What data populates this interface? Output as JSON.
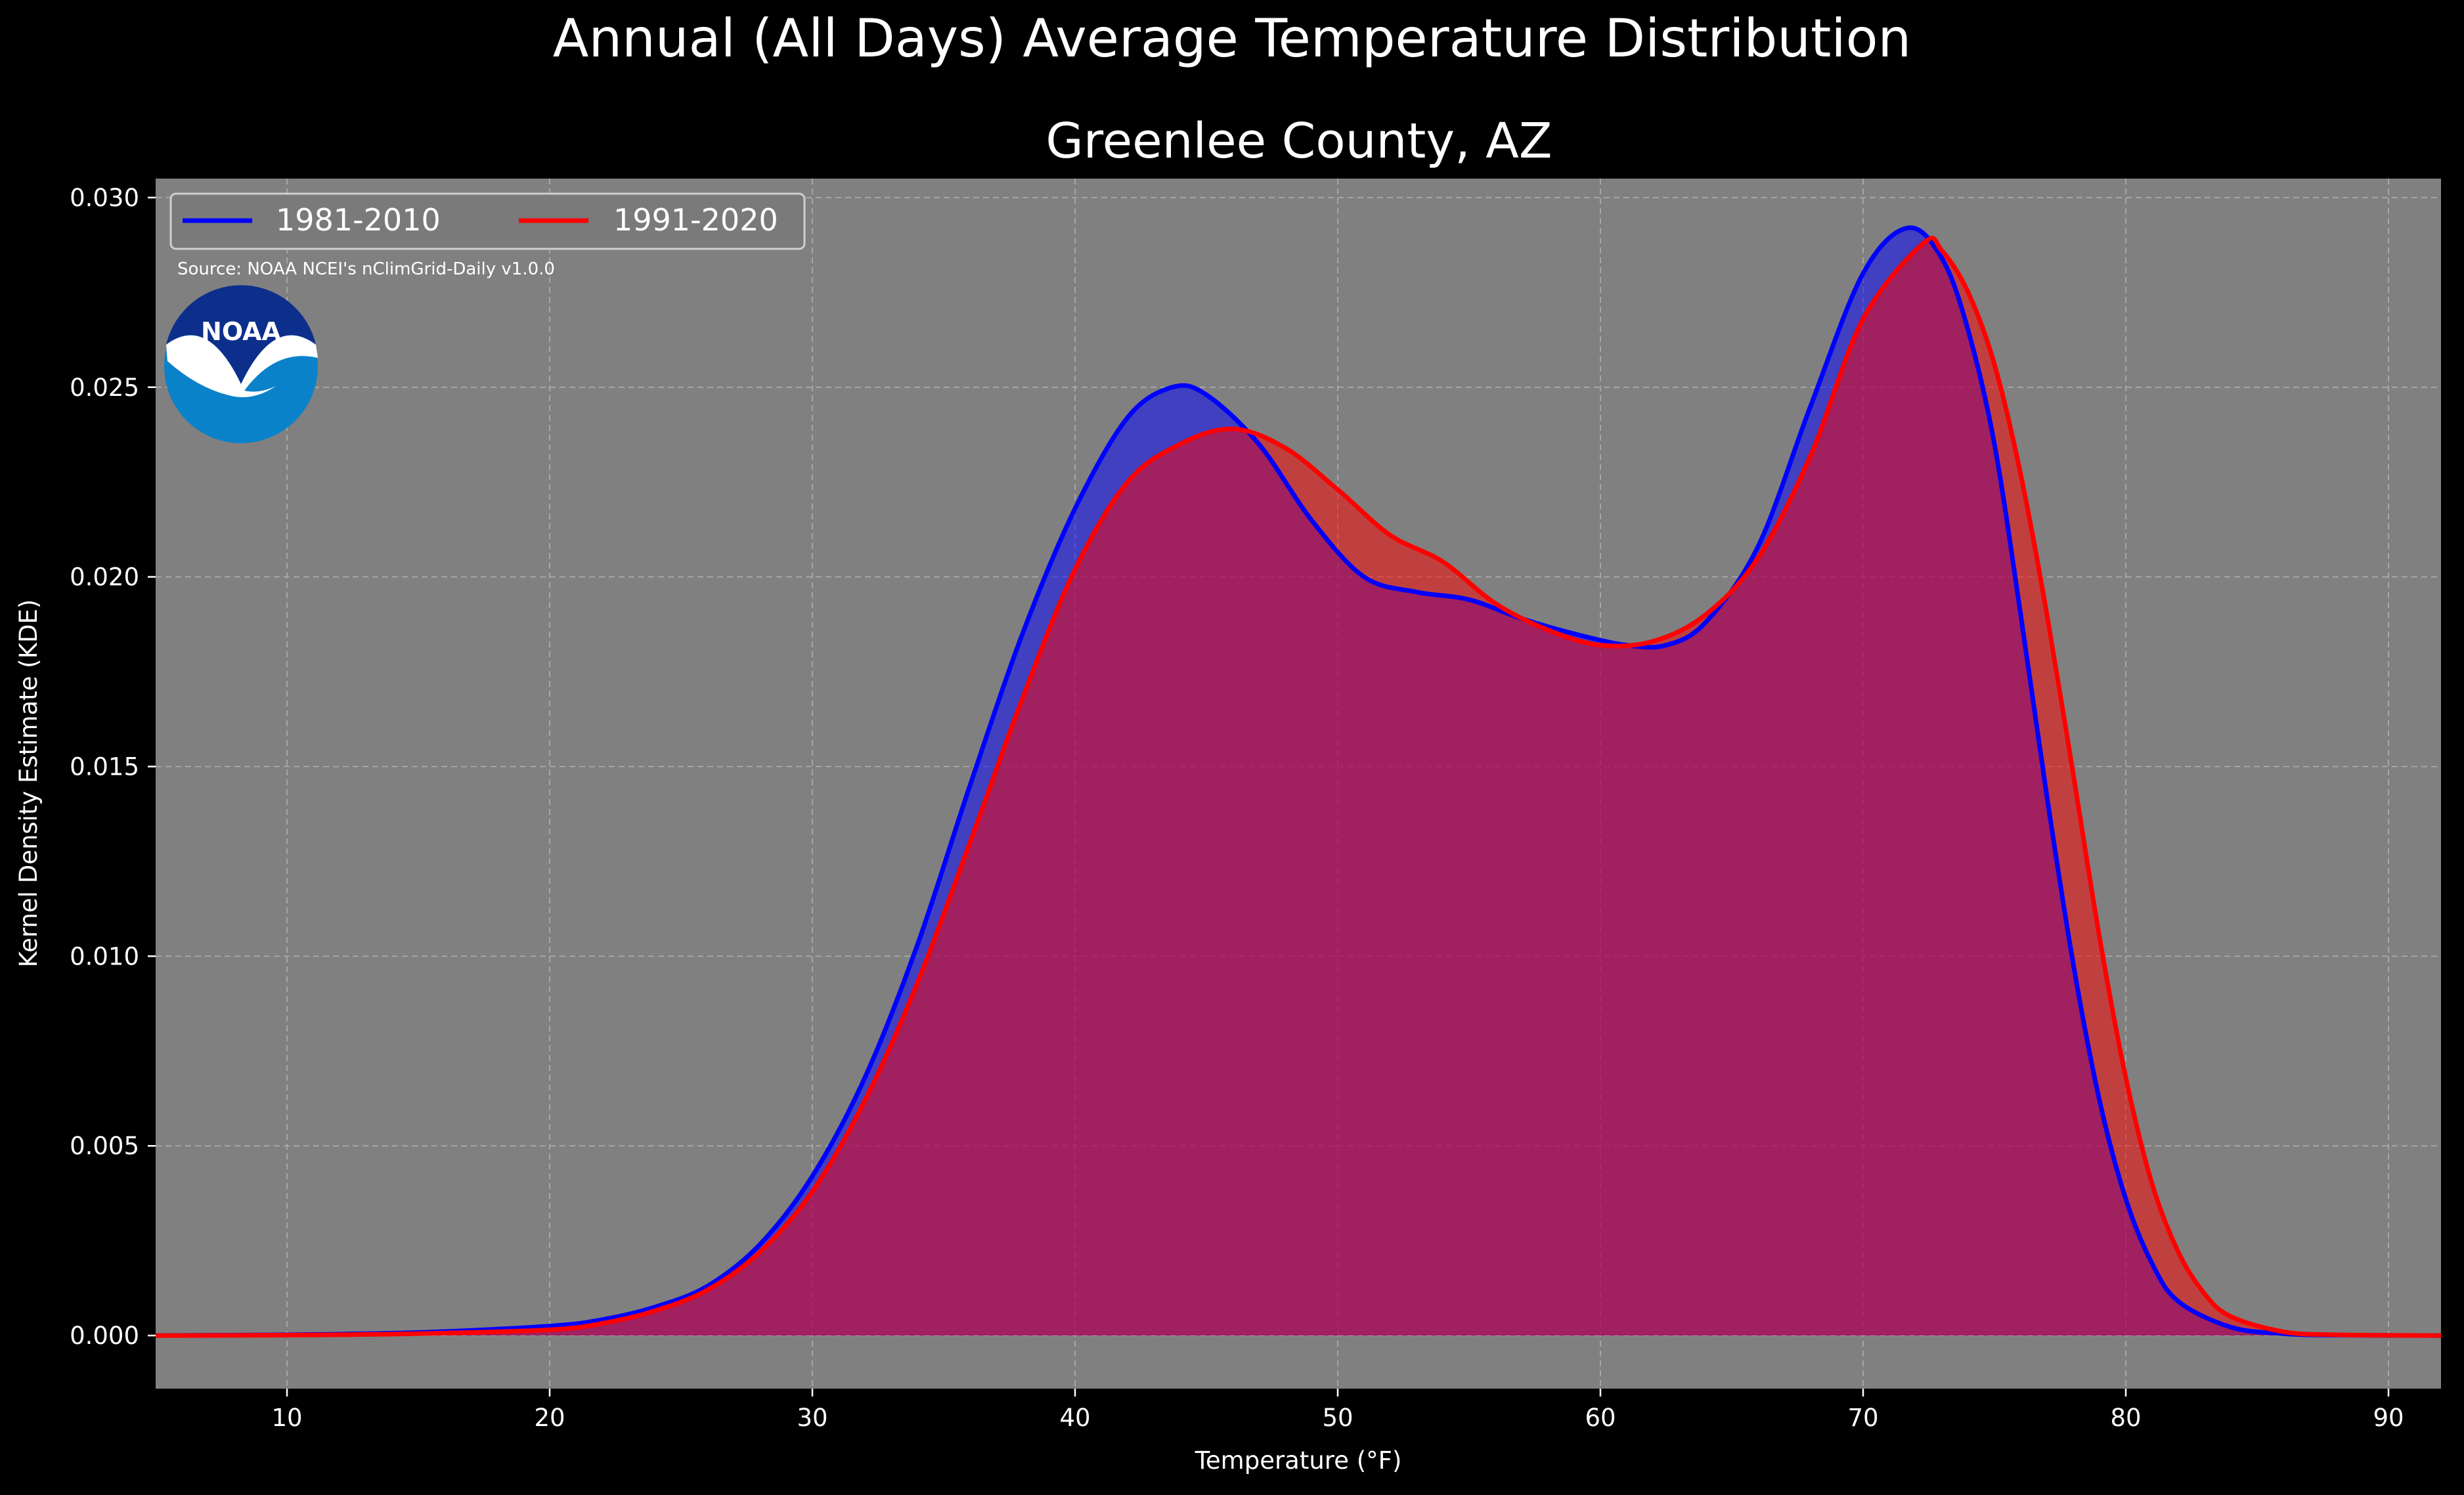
{
  "chart_data": {
    "type": "area",
    "suptitle": "Annual (All Days) Average Temperature Distribution",
    "title": "Greenlee County, AZ",
    "xlabel": "Temperature (°F)",
    "ylabel": "Kernel Density Estimate (KDE)",
    "xlim": [
      5,
      92
    ],
    "ylim": [
      -0.0014,
      0.0305
    ],
    "x_ticks": [
      10,
      20,
      30,
      40,
      50,
      60,
      70,
      80,
      90
    ],
    "x_tick_labels": [
      "10",
      "20",
      "30",
      "40",
      "50",
      "60",
      "70",
      "80",
      "90"
    ],
    "y_ticks": [
      0,
      0.005,
      0.01,
      0.015,
      0.02,
      0.025,
      0.03
    ],
    "y_tick_labels": [
      "0.000",
      "0.005",
      "0.010",
      "0.015",
      "0.020",
      "0.025",
      "0.030"
    ],
    "grid": true,
    "legend_position": "top-left",
    "source": "Source: NOAA NCEI's nClimGrid-Daily v1.0.0",
    "logo_text": "NOAA",
    "colors": {
      "figure_background": "#000000",
      "axes_background": "#808080",
      "grid": "#b0b0b0",
      "text": "#ffffff"
    },
    "series": [
      {
        "name": "1981-2010",
        "color": "#0000ff",
        "fill": "#0000ff",
        "points": [
          [
            5,
            0
          ],
          [
            10,
            2e-05
          ],
          [
            15,
            8e-05
          ],
          [
            20,
            0.00025
          ],
          [
            22,
            0.00042
          ],
          [
            24,
            0.00075
          ],
          [
            26,
            0.0013
          ],
          [
            28,
            0.0024
          ],
          [
            30,
            0.0042
          ],
          [
            32,
            0.0068
          ],
          [
            34,
            0.0103
          ],
          [
            36,
            0.0145
          ],
          [
            38,
            0.0185
          ],
          [
            40,
            0.0218
          ],
          [
            42,
            0.0242
          ],
          [
            43.7,
            0.025
          ],
          [
            45,
            0.0248
          ],
          [
            47,
            0.0235
          ],
          [
            49,
            0.0215
          ],
          [
            51,
            0.02
          ],
          [
            53,
            0.0196
          ],
          [
            55,
            0.0194
          ],
          [
            57,
            0.0189
          ],
          [
            59,
            0.0185
          ],
          [
            61,
            0.0182
          ],
          [
            62.5,
            0.0182
          ],
          [
            64,
            0.0188
          ],
          [
            66,
            0.0208
          ],
          [
            68,
            0.0245
          ],
          [
            70,
            0.028
          ],
          [
            71.7,
            0.0292
          ],
          [
            73,
            0.0284
          ],
          [
            74,
            0.0265
          ],
          [
            75,
            0.0235
          ],
          [
            76,
            0.019
          ],
          [
            77,
            0.0142
          ],
          [
            78,
            0.0098
          ],
          [
            79,
            0.0062
          ],
          [
            80,
            0.0036
          ],
          [
            81,
            0.0019
          ],
          [
            82,
            0.0009
          ],
          [
            84,
            0.00022
          ],
          [
            86,
            5e-05
          ],
          [
            88,
            1e-05
          ],
          [
            92,
            0
          ]
        ]
      },
      {
        "name": "1991-2020",
        "color": "#ff0000",
        "fill": "#ff0000",
        "points": [
          [
            5,
            0
          ],
          [
            10,
            1e-05
          ],
          [
            15,
            5e-05
          ],
          [
            20,
            0.00015
          ],
          [
            22,
            0.00032
          ],
          [
            24,
            0.00065
          ],
          [
            26,
            0.0012
          ],
          [
            28,
            0.0022
          ],
          [
            30,
            0.0038
          ],
          [
            32,
            0.0062
          ],
          [
            34,
            0.0093
          ],
          [
            36,
            0.013
          ],
          [
            38,
            0.0168
          ],
          [
            40,
            0.0202
          ],
          [
            42,
            0.0225
          ],
          [
            44,
            0.0235
          ],
          [
            46,
            0.0239
          ],
          [
            48,
            0.0234
          ],
          [
            50,
            0.0223
          ],
          [
            52,
            0.0211
          ],
          [
            54,
            0.0204
          ],
          [
            56,
            0.0193
          ],
          [
            58,
            0.0186
          ],
          [
            60,
            0.0182
          ],
          [
            62,
            0.0183
          ],
          [
            64,
            0.019
          ],
          [
            66,
            0.0205
          ],
          [
            68,
            0.0232
          ],
          [
            70,
            0.0268
          ],
          [
            72.3,
            0.0288
          ],
          [
            73,
            0.0286
          ],
          [
            74,
            0.0275
          ],
          [
            75,
            0.0256
          ],
          [
            76,
            0.0227
          ],
          [
            77,
            0.019
          ],
          [
            78,
            0.0148
          ],
          [
            79,
            0.0105
          ],
          [
            80,
            0.0068
          ],
          [
            81,
            0.004
          ],
          [
            82,
            0.0022
          ],
          [
            83,
            0.0011
          ],
          [
            84,
            0.0005
          ],
          [
            86,
            0.0001
          ],
          [
            88,
            2e-05
          ],
          [
            92,
            0
          ]
        ]
      }
    ]
  }
}
